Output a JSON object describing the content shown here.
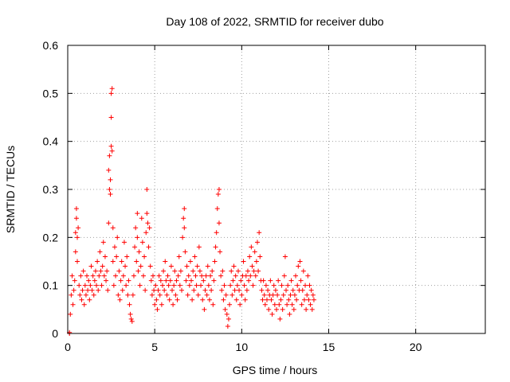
{
  "chart_data": {
    "type": "scatter",
    "title": "Day 108 of 2022, SRMTID for receiver dubo",
    "xlabel": "GPS time / hours",
    "ylabel": "SRMTID / TECUs",
    "xlim": [
      0,
      24
    ],
    "ylim": [
      0,
      0.6
    ],
    "x_ticks": [
      0,
      5,
      10,
      15,
      20
    ],
    "y_ticks": [
      0,
      0.1,
      0.2,
      0.3,
      0.4,
      0.5,
      0.6
    ],
    "x_tick_labels": [
      "0",
      "5",
      "10",
      "15",
      "20"
    ],
    "y_tick_labels": [
      "0",
      "0.1",
      "0.2",
      "0.3",
      "0.4",
      "0.5",
      "0.6"
    ],
    "grid": true,
    "legend": "none",
    "marker": "+",
    "color": "#ff0000",
    "series": [
      {
        "name": "SRMTID",
        "points": [
          [
            0.1,
            0.0
          ],
          [
            0.1,
            0.002
          ],
          [
            0.15,
            0.04
          ],
          [
            0.2,
            0.08
          ],
          [
            0.25,
            0.12
          ],
          [
            0.3,
            0.06
          ],
          [
            0.35,
            0.09
          ],
          [
            0.4,
            0.11
          ],
          [
            0.45,
            0.17
          ],
          [
            0.45,
            0.21
          ],
          [
            0.5,
            0.24
          ],
          [
            0.5,
            0.26
          ],
          [
            0.55,
            0.2
          ],
          [
            0.55,
            0.15
          ],
          [
            0.6,
            0.22
          ],
          [
            0.65,
            0.1
          ],
          [
            0.7,
            0.08
          ],
          [
            0.75,
            0.12
          ],
          [
            0.8,
            0.07
          ],
          [
            0.85,
            0.09
          ],
          [
            0.9,
            0.13
          ],
          [
            0.95,
            0.06
          ],
          [
            1.0,
            0.1
          ],
          [
            1.05,
            0.08
          ],
          [
            1.1,
            0.12
          ],
          [
            1.15,
            0.09
          ],
          [
            1.2,
            0.11
          ],
          [
            1.25,
            0.07
          ],
          [
            1.3,
            0.1
          ],
          [
            1.35,
            0.14
          ],
          [
            1.4,
            0.09
          ],
          [
            1.45,
            0.12
          ],
          [
            1.5,
            0.08
          ],
          [
            1.55,
            0.11
          ],
          [
            1.6,
            0.13
          ],
          [
            1.65,
            0.1
          ],
          [
            1.7,
            0.15
          ],
          [
            1.75,
            0.09
          ],
          [
            1.8,
            0.12
          ],
          [
            1.85,
            0.17
          ],
          [
            1.9,
            0.13
          ],
          [
            1.95,
            0.1
          ],
          [
            2.0,
            0.14
          ],
          [
            2.05,
            0.19
          ],
          [
            2.1,
            0.12
          ],
          [
            2.15,
            0.16
          ],
          [
            2.2,
            0.11
          ],
          [
            2.25,
            0.13
          ],
          [
            2.3,
            0.09
          ],
          [
            2.35,
            0.23
          ],
          [
            2.35,
            0.34
          ],
          [
            2.4,
            0.37
          ],
          [
            2.4,
            0.3
          ],
          [
            2.45,
            0.29
          ],
          [
            2.45,
            0.32
          ],
          [
            2.5,
            0.39
          ],
          [
            2.5,
            0.45
          ],
          [
            2.5,
            0.5
          ],
          [
            2.55,
            0.51
          ],
          [
            2.55,
            0.38
          ],
          [
            2.6,
            0.22
          ],
          [
            2.6,
            0.15
          ],
          [
            2.65,
            0.1
          ],
          [
            2.7,
            0.18
          ],
          [
            2.75,
            0.12
          ],
          [
            2.8,
            0.16
          ],
          [
            2.85,
            0.2
          ],
          [
            2.9,
            0.08
          ],
          [
            2.95,
            0.13
          ],
          [
            3.0,
            0.07
          ],
          [
            3.05,
            0.11
          ],
          [
            3.1,
            0.15
          ],
          [
            3.15,
            0.09
          ],
          [
            3.2,
            0.12
          ],
          [
            3.25,
            0.19
          ],
          [
            3.3,
            0.14
          ],
          [
            3.35,
            0.1
          ],
          [
            3.4,
            0.16
          ],
          [
            3.45,
            0.08
          ],
          [
            3.5,
            0.11
          ],
          [
            3.55,
            0.06
          ],
          [
            3.6,
            0.04
          ],
          [
            3.65,
            0.03
          ],
          [
            3.7,
            0.025
          ],
          [
            3.75,
            0.08
          ],
          [
            3.8,
            0.12
          ],
          [
            3.85,
            0.18
          ],
          [
            3.9,
            0.22
          ],
          [
            3.95,
            0.15
          ],
          [
            4.0,
            0.25
          ],
          [
            4.0,
            0.2
          ],
          [
            4.05,
            0.13
          ],
          [
            4.1,
            0.17
          ],
          [
            4.15,
            0.1
          ],
          [
            4.2,
            0.14
          ],
          [
            4.25,
            0.24
          ],
          [
            4.3,
            0.19
          ],
          [
            4.35,
            0.12
          ],
          [
            4.4,
            0.16
          ],
          [
            4.45,
            0.09
          ],
          [
            4.5,
            0.21
          ],
          [
            4.55,
            0.25
          ],
          [
            4.55,
            0.3
          ],
          [
            4.6,
            0.23
          ],
          [
            4.65,
            0.18
          ],
          [
            4.7,
            0.22
          ],
          [
            4.75,
            0.14
          ],
          [
            4.8,
            0.11
          ],
          [
            4.85,
            0.08
          ],
          [
            4.9,
            0.12
          ],
          [
            4.95,
            0.09
          ],
          [
            5.0,
            0.06
          ],
          [
            5.05,
            0.1
          ],
          [
            5.1,
            0.07
          ],
          [
            5.15,
            0.05
          ],
          [
            5.2,
            0.09
          ],
          [
            5.25,
            0.12
          ],
          [
            5.3,
            0.08
          ],
          [
            5.35,
            0.11
          ],
          [
            5.4,
            0.06
          ],
          [
            5.45,
            0.1
          ],
          [
            5.5,
            0.13
          ],
          [
            5.55,
            0.09
          ],
          [
            5.6,
            0.15
          ],
          [
            5.65,
            0.11
          ],
          [
            5.7,
            0.08
          ],
          [
            5.75,
            0.12
          ],
          [
            5.8,
            0.1
          ],
          [
            5.85,
            0.07
          ],
          [
            5.9,
            0.11
          ],
          [
            5.95,
            0.14
          ],
          [
            6.0,
            0.09
          ],
          [
            6.05,
            0.06
          ],
          [
            6.1,
            0.1
          ],
          [
            6.15,
            0.13
          ],
          [
            6.2,
            0.08
          ],
          [
            6.25,
            0.11
          ],
          [
            6.3,
            0.07
          ],
          [
            6.35,
            0.12
          ],
          [
            6.4,
            0.16
          ],
          [
            6.45,
            0.1
          ],
          [
            6.5,
            0.13
          ],
          [
            6.55,
            0.09
          ],
          [
            6.6,
            0.2
          ],
          [
            6.65,
            0.24
          ],
          [
            6.7,
            0.26
          ],
          [
            6.7,
            0.22
          ],
          [
            6.75,
            0.17
          ],
          [
            6.8,
            0.11
          ],
          [
            6.85,
            0.14
          ],
          [
            6.9,
            0.08
          ],
          [
            6.95,
            0.12
          ],
          [
            7.0,
            0.1
          ],
          [
            7.05,
            0.15
          ],
          [
            7.1,
            0.11
          ],
          [
            7.15,
            0.07
          ],
          [
            7.2,
            0.13
          ],
          [
            7.25,
            0.09
          ],
          [
            7.3,
            0.16
          ],
          [
            7.35,
            0.12
          ],
          [
            7.4,
            0.1
          ],
          [
            7.45,
            0.14
          ],
          [
            7.5,
            0.08
          ],
          [
            7.55,
            0.18
          ],
          [
            7.6,
            0.13
          ],
          [
            7.65,
            0.1
          ],
          [
            7.7,
            0.12
          ],
          [
            7.75,
            0.07
          ],
          [
            7.8,
            0.11
          ],
          [
            7.85,
            0.05
          ],
          [
            7.9,
            0.09
          ],
          [
            7.95,
            0.12
          ],
          [
            8.0,
            0.08
          ],
          [
            8.05,
            0.14
          ],
          [
            8.1,
            0.1
          ],
          [
            8.15,
            0.07
          ],
          [
            8.2,
            0.12
          ],
          [
            8.25,
            0.09
          ],
          [
            8.3,
            0.13
          ],
          [
            8.35,
            0.06
          ],
          [
            8.4,
            0.11
          ],
          [
            8.45,
            0.15
          ],
          [
            8.5,
            0.18
          ],
          [
            8.55,
            0.21
          ],
          [
            8.6,
            0.26
          ],
          [
            8.65,
            0.29
          ],
          [
            8.7,
            0.3
          ],
          [
            8.7,
            0.23
          ],
          [
            8.75,
            0.17
          ],
          [
            8.8,
            0.12
          ],
          [
            8.85,
            0.09
          ],
          [
            8.9,
            0.13
          ],
          [
            8.95,
            0.07
          ],
          [
            9.0,
            0.1
          ],
          [
            9.05,
            0.05
          ],
          [
            9.1,
            0.08
          ],
          [
            9.15,
            0.04
          ],
          [
            9.2,
            0.015
          ],
          [
            9.25,
            0.03
          ],
          [
            9.3,
            0.06
          ],
          [
            9.35,
            0.1
          ],
          [
            9.4,
            0.13
          ],
          [
            9.45,
            0.08
          ],
          [
            9.5,
            0.11
          ],
          [
            9.55,
            0.14
          ],
          [
            9.6,
            0.09
          ],
          [
            9.65,
            0.12
          ],
          [
            9.7,
            0.07
          ],
          [
            9.75,
            0.1
          ],
          [
            9.8,
            0.13
          ],
          [
            9.85,
            0.09
          ],
          [
            9.9,
            0.06
          ],
          [
            9.95,
            0.11
          ],
          [
            10.0,
            0.08
          ],
          [
            10.05,
            0.12
          ],
          [
            10.1,
            0.15
          ],
          [
            10.15,
            0.1
          ],
          [
            10.2,
            0.07
          ],
          [
            10.25,
            0.12
          ],
          [
            10.3,
            0.09
          ],
          [
            10.35,
            0.13
          ],
          [
            10.4,
            0.11
          ],
          [
            10.45,
            0.16
          ],
          [
            10.5,
            0.12
          ],
          [
            10.55,
            0.18
          ],
          [
            10.6,
            0.14
          ],
          [
            10.65,
            0.1
          ],
          [
            10.7,
            0.13
          ],
          [
            10.75,
            0.17
          ],
          [
            10.8,
            0.12
          ],
          [
            10.85,
            0.15
          ],
          [
            10.9,
            0.19
          ],
          [
            10.95,
            0.13
          ],
          [
            11.0,
            0.21
          ],
          [
            11.05,
            0.16
          ],
          [
            11.1,
            0.11
          ],
          [
            11.15,
            0.09
          ],
          [
            11.2,
            0.07
          ],
          [
            11.25,
            0.11
          ],
          [
            11.3,
            0.08
          ],
          [
            11.35,
            0.06
          ],
          [
            11.4,
            0.1
          ],
          [
            11.45,
            0.07
          ],
          [
            11.5,
            0.09
          ],
          [
            11.55,
            0.05
          ],
          [
            11.6,
            0.08
          ],
          [
            11.65,
            0.11
          ],
          [
            11.7,
            0.07
          ],
          [
            11.75,
            0.04
          ],
          [
            11.8,
            0.08
          ],
          [
            11.85,
            0.1
          ],
          [
            11.9,
            0.06
          ],
          [
            11.95,
            0.09
          ],
          [
            12.0,
            0.05
          ],
          [
            12.05,
            0.08
          ],
          [
            12.1,
            0.11
          ],
          [
            12.15,
            0.06
          ],
          [
            12.2,
            0.03
          ],
          [
            12.25,
            0.07
          ],
          [
            12.3,
            0.1
          ],
          [
            12.35,
            0.05
          ],
          [
            12.4,
            0.08
          ],
          [
            12.45,
            0.12
          ],
          [
            12.5,
            0.16
          ],
          [
            12.55,
            0.09
          ],
          [
            12.6,
            0.06
          ],
          [
            12.65,
            0.1
          ],
          [
            12.7,
            0.07
          ],
          [
            12.75,
            0.04
          ],
          [
            12.8,
            0.08
          ],
          [
            12.85,
            0.11
          ],
          [
            12.9,
            0.06
          ],
          [
            12.95,
            0.09
          ],
          [
            13.0,
            0.05
          ],
          [
            13.05,
            0.08
          ],
          [
            13.1,
            0.12
          ],
          [
            13.15,
            0.07
          ],
          [
            13.2,
            0.1
          ],
          [
            13.25,
            0.14
          ],
          [
            13.3,
            0.09
          ],
          [
            13.35,
            0.15
          ],
          [
            13.4,
            0.11
          ],
          [
            13.45,
            0.06
          ],
          [
            13.5,
            0.09
          ],
          [
            13.55,
            0.13
          ],
          [
            13.6,
            0.07
          ],
          [
            13.65,
            0.1
          ],
          [
            13.7,
            0.05
          ],
          [
            13.75,
            0.08
          ],
          [
            13.8,
            0.12
          ],
          [
            13.85,
            0.07
          ],
          [
            13.9,
            0.1
          ],
          [
            13.95,
            0.06
          ],
          [
            14.0,
            0.09
          ],
          [
            14.05,
            0.05
          ],
          [
            14.1,
            0.08
          ],
          [
            14.15,
            0.07
          ]
        ]
      }
    ]
  }
}
